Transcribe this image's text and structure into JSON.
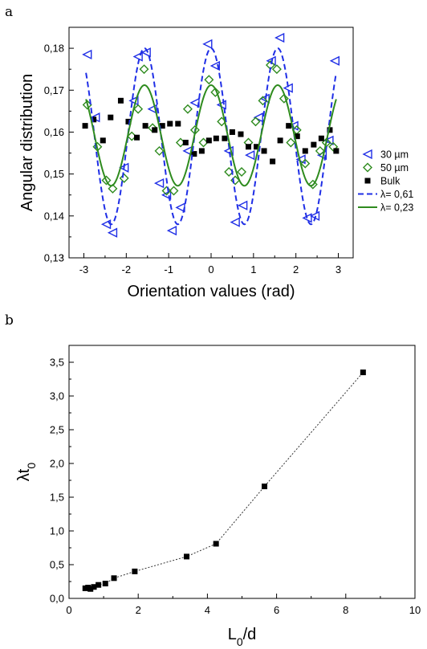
{
  "chart_data": [
    {
      "panel_label": "a",
      "type": "scatter",
      "xlabel": "Orientation values (rad)",
      "ylabel": "Angular distribution",
      "xlim": [
        -3.35,
        3.35
      ],
      "ylim": [
        0.13,
        0.185
      ],
      "xticks": [
        -3,
        -2,
        -1,
        0,
        1,
        2,
        3
      ],
      "xtick_labels": [
        "-3",
        "-2",
        "-1",
        "0",
        "1",
        "2",
        "3"
      ],
      "yticks": [
        0.13,
        0.14,
        0.15,
        0.16,
        0.17,
        0.18
      ],
      "ytick_labels": [
        "0,13",
        "0,14",
        "0,15",
        "0,16",
        "0,17",
        "0,18"
      ],
      "legend_position": "right",
      "series": [
        {
          "name": "30 µm",
          "marker": "triangle-left-open",
          "color": "#1f2ee6",
          "x": [
            -2.92,
            -2.73,
            -2.47,
            -2.32,
            -2.05,
            -1.82,
            -1.72,
            -1.53,
            -1.38,
            -1.22,
            -1.05,
            -0.92,
            -0.72,
            -0.55,
            -0.38,
            -0.08,
            0.1,
            0.25,
            0.42,
            0.57,
            0.75,
            0.92,
            1.12,
            1.27,
            1.42,
            1.62,
            1.82,
            1.95,
            2.12,
            2.27,
            2.45,
            2.62,
            2.78,
            2.92
          ],
          "y": [
            0.1785,
            0.1635,
            0.138,
            0.136,
            0.1515,
            0.1675,
            0.178,
            0.179,
            0.1655,
            0.1478,
            0.145,
            0.1365,
            0.142,
            0.1555,
            0.167,
            0.181,
            0.1758,
            0.1665,
            0.1555,
            0.1385,
            0.1425,
            0.1545,
            0.1635,
            0.168,
            0.177,
            0.1825,
            0.1705,
            0.1615,
            0.1535,
            0.1395,
            0.14,
            0.1545,
            0.158,
            0.177
          ]
        },
        {
          "name": "50 µm",
          "marker": "diamond-open",
          "color": "#2e8b1e",
          "x": [
            -2.92,
            -2.68,
            -2.47,
            -2.32,
            -2.05,
            -1.87,
            -1.72,
            -1.58,
            -1.38,
            -1.22,
            -1.05,
            -0.88,
            -0.72,
            -0.55,
            -0.38,
            -0.18,
            -0.05,
            0.1,
            0.25,
            0.42,
            0.57,
            0.72,
            0.88,
            1.05,
            1.22,
            1.4,
            1.55,
            1.72,
            1.88,
            2.02,
            2.22,
            2.4,
            2.57,
            2.72,
            2.88
          ],
          "y": [
            0.1665,
            0.1565,
            0.1485,
            0.1465,
            0.149,
            0.159,
            0.1655,
            0.175,
            0.161,
            0.1555,
            0.146,
            0.146,
            0.1575,
            0.1655,
            0.1605,
            0.1575,
            0.1725,
            0.1695,
            0.1625,
            0.1505,
            0.1485,
            0.1505,
            0.1575,
            0.1625,
            0.1675,
            0.176,
            0.175,
            0.168,
            0.1575,
            0.1605,
            0.1525,
            0.1475,
            0.1555,
            0.1575,
            0.1565
          ]
        },
        {
          "name": "Bulk",
          "marker": "square-filled",
          "color": "#000000",
          "x": [
            -2.97,
            -2.77,
            -2.55,
            -2.37,
            -2.13,
            -1.95,
            -1.75,
            -1.55,
            -1.33,
            -1.15,
            -0.97,
            -0.78,
            -0.6,
            -0.4,
            -0.22,
            -0.05,
            0.12,
            0.32,
            0.5,
            0.7,
            0.88,
            1.07,
            1.25,
            1.45,
            1.63,
            1.83,
            2.03,
            2.22,
            2.42,
            2.6,
            2.8,
            2.95
          ],
          "y": [
            0.1615,
            0.163,
            0.158,
            0.1635,
            0.1675,
            0.1625,
            0.1587,
            0.1615,
            0.1605,
            0.1615,
            0.162,
            0.162,
            0.1575,
            0.1548,
            0.1555,
            0.158,
            0.1585,
            0.1585,
            0.16,
            0.1595,
            0.1565,
            0.1565,
            0.1555,
            0.153,
            0.158,
            0.1615,
            0.159,
            0.1555,
            0.157,
            0.1585,
            0.1605,
            0.1555
          ]
        },
        {
          "name": "λ= 0,61",
          "style": "dashed-line",
          "color": "#1f2ee6",
          "mean": 0.159,
          "amplitude": 0.021,
          "cycles_per_2pi": 4
        },
        {
          "name": "λ= 0,23",
          "style": "solid-line",
          "color": "#2e8b1e",
          "mean": 0.1592,
          "amplitude": 0.012,
          "cycles_per_2pi": 4
        }
      ]
    },
    {
      "panel_label": "b",
      "type": "scatter",
      "xlabel": "L",
      "xlabel_sub": "0",
      "xlabel_tail": "/d",
      "ylabel": "λt",
      "ylabel_sub": "0",
      "xlim": [
        0,
        10
      ],
      "ylim": [
        0,
        3.75
      ],
      "xticks": [
        0,
        2,
        4,
        6,
        8,
        10
      ],
      "xtick_labels": [
        "0",
        "2",
        "4",
        "6",
        "8",
        "10"
      ],
      "yticks": [
        0,
        0.5,
        1.0,
        1.5,
        2.0,
        2.5,
        3.0,
        3.5
      ],
      "ytick_labels": [
        "0,0",
        "0,5",
        "1,0",
        "1,5",
        "2,0",
        "2,5",
        "3,0",
        "3,5"
      ],
      "series": [
        {
          "marker": "square-filled",
          "color": "#000000",
          "connector": "dotted",
          "x": [
            0.47,
            0.55,
            0.62,
            0.72,
            0.85,
            1.05,
            1.3,
            1.9,
            3.4,
            4.25,
            5.65,
            8.5
          ],
          "y": [
            0.15,
            0.16,
            0.14,
            0.17,
            0.2,
            0.22,
            0.3,
            0.4,
            0.62,
            0.81,
            1.66,
            3.35
          ]
        }
      ]
    }
  ]
}
